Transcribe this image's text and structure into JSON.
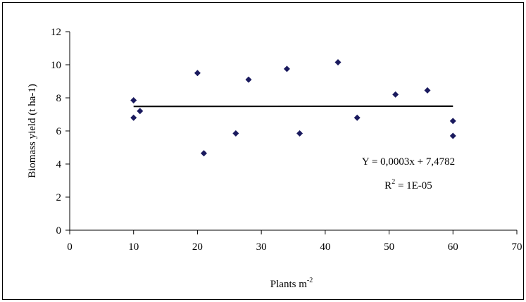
{
  "chart_data": {
    "type": "scatter",
    "title": "",
    "xlabel": "Plants m",
    "xlabel_sup": "-2",
    "ylabel": "Biomass yield (t ha-1)",
    "xlim": [
      0,
      70
    ],
    "ylim": [
      0,
      12
    ],
    "xticks": [
      0,
      10,
      20,
      30,
      40,
      50,
      60,
      70
    ],
    "yticks": [
      0,
      2,
      4,
      6,
      8,
      10,
      12
    ],
    "grid": false,
    "legend": "none",
    "marker_color": "#1a1a5e",
    "points": [
      {
        "x": 10,
        "y": 7.85
      },
      {
        "x": 10,
        "y": 6.8
      },
      {
        "x": 11,
        "y": 7.2
      },
      {
        "x": 20,
        "y": 9.5
      },
      {
        "x": 21,
        "y": 4.65
      },
      {
        "x": 26,
        "y": 5.85
      },
      {
        "x": 28,
        "y": 9.1
      },
      {
        "x": 34,
        "y": 9.75
      },
      {
        "x": 36,
        "y": 5.85
      },
      {
        "x": 42,
        "y": 10.15
      },
      {
        "x": 45,
        "y": 6.8
      },
      {
        "x": 51,
        "y": 8.2
      },
      {
        "x": 56,
        "y": 8.45
      },
      {
        "x": 60,
        "y": 6.6
      },
      {
        "x": 60,
        "y": 5.7
      }
    ],
    "trendline": {
      "slope": 0.0003,
      "intercept": 7.4782,
      "x_range": [
        10,
        60
      ],
      "equation_text": "Y = 0,0003x + 7,4782",
      "r2_prefix": "R",
      "r2_sup": "2",
      "r2_suffix": " = 1E-05"
    }
  }
}
